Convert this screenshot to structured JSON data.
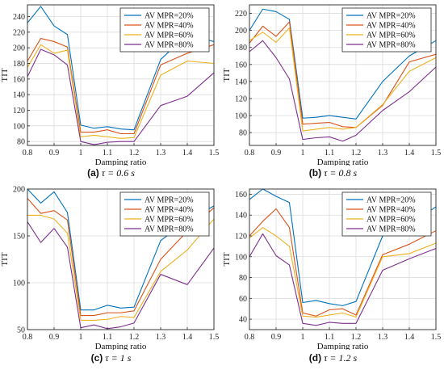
{
  "series_colors": [
    "#0072BD",
    "#D95319",
    "#EDB120",
    "#7E2F8E"
  ],
  "chart_data": [
    {
      "type": "line",
      "caption_letter": "(a)",
      "caption_tau": "τ = 0.6 s",
      "xlabel": "Damping ratio",
      "ylabel": "TIT",
      "xlim": [
        0.8,
        1.5
      ],
      "ylim": [
        75,
        255
      ],
      "xticks": [
        0.8,
        0.9,
        1,
        1.1,
        1.2,
        1.3,
        1.4,
        1.5
      ],
      "yticks": [
        80,
        100,
        120,
        140,
        160,
        180,
        200,
        220,
        240
      ],
      "legend_position": "top-right",
      "x": [
        0.8,
        0.85,
        0.9,
        0.95,
        1.0,
        1.05,
        1.1,
        1.15,
        1.2,
        1.3,
        1.4,
        1.5
      ],
      "series": [
        {
          "name": "AV MPR=20%",
          "values": [
            232,
            253,
            228,
            217,
            101,
            97,
            99,
            96,
            95,
            185,
            217,
            208
          ]
        },
        {
          "name": "AV MPR=40%",
          "values": [
            183,
            212,
            208,
            201,
            92,
            92,
            95,
            90,
            90,
            178,
            193,
            204
          ]
        },
        {
          "name": "AV MPR=60%",
          "values": [
            175,
            204,
            193,
            197,
            86,
            88,
            86,
            84,
            85,
            165,
            183,
            180
          ]
        },
        {
          "name": "AV MPR=80%",
          "values": [
            163,
            198,
            191,
            178,
            80,
            76,
            79,
            80,
            80,
            126,
            138,
            168
          ]
        }
      ]
    },
    {
      "type": "line",
      "caption_letter": "(b)",
      "caption_tau": "τ = 0.8 s",
      "xlabel": "Damping ratio",
      "ylabel": "TIT",
      "xlim": [
        0.8,
        1.5
      ],
      "ylim": [
        65,
        230
      ],
      "xticks": [
        0.8,
        0.9,
        1,
        1.1,
        1.2,
        1.3,
        1.4,
        1.5
      ],
      "yticks": [
        80,
        100,
        120,
        140,
        160,
        180,
        200,
        220
      ],
      "legend_position": "top-right",
      "x": [
        0.8,
        0.85,
        0.9,
        0.95,
        1.0,
        1.05,
        1.1,
        1.15,
        1.2,
        1.3,
        1.4,
        1.5
      ],
      "series": [
        {
          "name": "AV MPR=20%",
          "values": [
            200,
            225,
            222,
            213,
            97,
            98,
            100,
            98,
            96,
            140,
            170,
            188
          ]
        },
        {
          "name": "AV MPR=40%",
          "values": [
            185,
            205,
            193,
            210,
            90,
            91,
            92,
            87,
            86,
            112,
            163,
            172
          ]
        },
        {
          "name": "AV MPR=60%",
          "values": [
            188,
            198,
            186,
            203,
            82,
            84,
            86,
            84,
            86,
            113,
            152,
            168
          ]
        },
        {
          "name": "AV MPR=80%",
          "values": [
            175,
            188,
            168,
            143,
            72,
            74,
            75,
            70,
            77,
            106,
            128,
            157
          ]
        }
      ]
    },
    {
      "type": "line",
      "caption_letter": "(c)",
      "caption_tau": "τ = 1 s",
      "xlabel": "Damping ratio",
      "ylabel": "TIT",
      "xlim": [
        0.8,
        1.5
      ],
      "ylim": [
        50,
        200
      ],
      "xticks": [
        0.8,
        0.9,
        1,
        1.1,
        1.2,
        1.3,
        1.4,
        1.5
      ],
      "yticks": [
        50,
        100,
        150,
        200
      ],
      "legend_position": "top-right",
      "x": [
        0.8,
        0.85,
        0.9,
        0.95,
        1.0,
        1.05,
        1.1,
        1.15,
        1.2,
        1.3,
        1.4,
        1.5
      ],
      "series": [
        {
          "name": "AV MPR=20%",
          "values": [
            200,
            185,
            197,
            175,
            71,
            71,
            76,
            73,
            74,
            145,
            166,
            182
          ]
        },
        {
          "name": "AV MPR=40%",
          "values": [
            190,
            174,
            177,
            167,
            65,
            65,
            68,
            68,
            70,
            125,
            155,
            180
          ]
        },
        {
          "name": "AV MPR=60%",
          "values": [
            172,
            172,
            168,
            153,
            60,
            60,
            61,
            64,
            63,
            112,
            135,
            168
          ]
        },
        {
          "name": "AV MPR=80%",
          "values": [
            165,
            143,
            158,
            138,
            52,
            55,
            51,
            53,
            57,
            109,
            98,
            137
          ]
        }
      ]
    },
    {
      "type": "line",
      "caption_letter": "(d)",
      "caption_tau": "τ = 1.2 s",
      "xlabel": "Damping ratio",
      "ylabel": "TIT",
      "xlim": [
        0.8,
        1.5
      ],
      "ylim": [
        30,
        165
      ],
      "xticks": [
        0.8,
        0.9,
        1,
        1.1,
        1.2,
        1.3,
        1.4,
        1.5
      ],
      "yticks": [
        40,
        60,
        80,
        100,
        120,
        140,
        160
      ],
      "legend_position": "top-right",
      "x": [
        0.8,
        0.85,
        0.9,
        0.95,
        1.0,
        1.05,
        1.1,
        1.15,
        1.2,
        1.3,
        1.4,
        1.5
      ],
      "series": [
        {
          "name": "AV MPR=20%",
          "values": [
            155,
            165,
            158,
            152,
            56,
            58,
            55,
            53,
            57,
            120,
            130,
            148
          ]
        },
        {
          "name": "AV MPR=40%",
          "values": [
            120,
            134,
            146,
            128,
            46,
            43,
            49,
            50,
            44,
            102,
            112,
            125
          ]
        },
        {
          "name": "AV MPR=60%",
          "values": [
            118,
            128,
            120,
            110,
            43,
            42,
            44,
            46,
            42,
            100,
            103,
            113
          ]
        },
        {
          "name": "AV MPR=80%",
          "values": [
            100,
            122,
            101,
            92,
            36,
            34,
            37,
            36,
            36,
            87,
            98,
            108
          ]
        }
      ]
    }
  ]
}
